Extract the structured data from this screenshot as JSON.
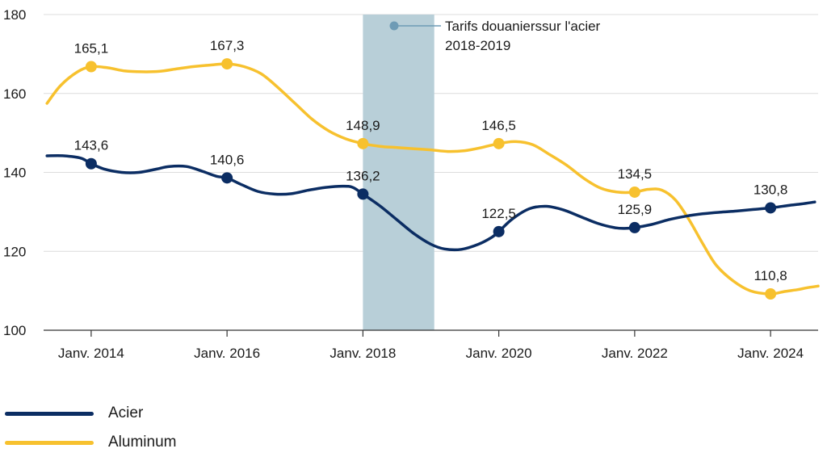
{
  "chart_data": {
    "type": "line",
    "ylim": [
      100,
      180
    ],
    "yticks": [
      100,
      120,
      140,
      160,
      180
    ],
    "xlim": [
      2013.3,
      2024.7
    ],
    "xticks": [
      {
        "x": 2014,
        "label": "Janv. 2014"
      },
      {
        "x": 2016,
        "label": "Janv. 2016"
      },
      {
        "x": 2018,
        "label": "Janv. 2018"
      },
      {
        "x": 2020,
        "label": "Janv. 2020"
      },
      {
        "x": 2022,
        "label": "Janv. 2022"
      },
      {
        "x": 2024,
        "label": "Janv. 2024"
      }
    ],
    "shaded_region": {
      "x_start": 2018.0,
      "x_end": 2019.05,
      "color": "#b8cfd8"
    },
    "annotation": {
      "line1": "Tarifs douanierssur l'acier",
      "line2": "2018-2019"
    },
    "legend_position": "bottom-left",
    "series": [
      {
        "name": "Acier",
        "color": "#0b2d63",
        "points": [
          [
            2013.35,
            144.2
          ],
          [
            2013.6,
            144.2
          ],
          [
            2013.85,
            143.6
          ],
          [
            2014.0,
            142.2
          ],
          [
            2014.2,
            140.8
          ],
          [
            2014.45,
            140.0
          ],
          [
            2014.7,
            140.0
          ],
          [
            2014.95,
            140.8
          ],
          [
            2015.15,
            141.5
          ],
          [
            2015.4,
            141.5
          ],
          [
            2015.65,
            140.2
          ],
          [
            2015.85,
            139.0
          ],
          [
            2016.0,
            138.6
          ],
          [
            2016.2,
            137.0
          ],
          [
            2016.45,
            135.2
          ],
          [
            2016.7,
            134.5
          ],
          [
            2016.95,
            134.6
          ],
          [
            2017.2,
            135.5
          ],
          [
            2017.45,
            136.2
          ],
          [
            2017.7,
            136.5
          ],
          [
            2017.85,
            136.2
          ],
          [
            2018.0,
            134.5
          ],
          [
            2018.25,
            131.5
          ],
          [
            2018.5,
            128.0
          ],
          [
            2018.75,
            124.5
          ],
          [
            2019.0,
            121.8
          ],
          [
            2019.2,
            120.6
          ],
          [
            2019.45,
            120.5
          ],
          [
            2019.7,
            121.8
          ],
          [
            2019.9,
            123.6
          ],
          [
            2020.0,
            125.0
          ],
          [
            2020.2,
            128.2
          ],
          [
            2020.45,
            130.8
          ],
          [
            2020.7,
            131.4
          ],
          [
            2020.95,
            130.5
          ],
          [
            2021.2,
            128.8
          ],
          [
            2021.45,
            127.1
          ],
          [
            2021.7,
            126.0
          ],
          [
            2021.85,
            125.8
          ],
          [
            2022.0,
            126.0
          ],
          [
            2022.25,
            126.8
          ],
          [
            2022.5,
            128.0
          ],
          [
            2022.75,
            128.9
          ],
          [
            2023.0,
            129.5
          ],
          [
            2023.25,
            129.9
          ],
          [
            2023.5,
            130.2
          ],
          [
            2023.75,
            130.6
          ],
          [
            2024.0,
            131.0
          ],
          [
            2024.25,
            131.6
          ],
          [
            2024.45,
            132.0
          ],
          [
            2024.65,
            132.5
          ]
        ]
      },
      {
        "name": "Aluminum",
        "color": "#f7c12e",
        "points": [
          [
            2013.35,
            157.5
          ],
          [
            2013.55,
            162.0
          ],
          [
            2013.8,
            165.5
          ],
          [
            2014.0,
            166.8
          ],
          [
            2014.25,
            166.5
          ],
          [
            2014.5,
            165.7
          ],
          [
            2014.75,
            165.5
          ],
          [
            2015.0,
            165.6
          ],
          [
            2015.25,
            166.2
          ],
          [
            2015.5,
            166.8
          ],
          [
            2015.75,
            167.2
          ],
          [
            2016.0,
            167.5
          ],
          [
            2016.25,
            166.8
          ],
          [
            2016.5,
            165.0
          ],
          [
            2016.75,
            161.5
          ],
          [
            2017.0,
            157.5
          ],
          [
            2017.25,
            153.5
          ],
          [
            2017.5,
            150.5
          ],
          [
            2017.75,
            148.5
          ],
          [
            2018.0,
            147.3
          ],
          [
            2018.25,
            146.6
          ],
          [
            2018.5,
            146.3
          ],
          [
            2018.75,
            146.0
          ],
          [
            2019.0,
            145.7
          ],
          [
            2019.25,
            145.3
          ],
          [
            2019.5,
            145.5
          ],
          [
            2019.75,
            146.3
          ],
          [
            2020.0,
            147.3
          ],
          [
            2020.25,
            147.8
          ],
          [
            2020.5,
            147.0
          ],
          [
            2020.75,
            144.5
          ],
          [
            2021.0,
            141.8
          ],
          [
            2021.25,
            138.5
          ],
          [
            2021.5,
            136.0
          ],
          [
            2021.75,
            135.0
          ],
          [
            2022.0,
            135.0
          ],
          [
            2022.2,
            135.7
          ],
          [
            2022.4,
            135.5
          ],
          [
            2022.6,
            133.0
          ],
          [
            2022.8,
            128.0
          ],
          [
            2023.0,
            122.0
          ],
          [
            2023.2,
            116.5
          ],
          [
            2023.45,
            112.5
          ],
          [
            2023.7,
            110.0
          ],
          [
            2024.0,
            109.2
          ],
          [
            2024.2,
            109.8
          ],
          [
            2024.4,
            110.3
          ],
          [
            2024.55,
            110.8
          ],
          [
            2024.7,
            111.2
          ]
        ]
      }
    ],
    "markers": [
      {
        "series": 0,
        "x": 2014.0,
        "y": 142.2,
        "label": "143,6"
      },
      {
        "series": 0,
        "x": 2016.0,
        "y": 138.6,
        "label": "140,6"
      },
      {
        "series": 0,
        "x": 2018.0,
        "y": 134.5,
        "label": "136,2"
      },
      {
        "series": 0,
        "x": 2020.0,
        "y": 125.0,
        "label": "122,5"
      },
      {
        "series": 0,
        "x": 2022.0,
        "y": 126.0,
        "label": "125,9"
      },
      {
        "series": 0,
        "x": 2024.0,
        "y": 131.0,
        "label": "130,8"
      },
      {
        "series": 1,
        "x": 2014.0,
        "y": 166.8,
        "label": "165,1"
      },
      {
        "series": 1,
        "x": 2016.0,
        "y": 167.5,
        "label": "167,3"
      },
      {
        "series": 1,
        "x": 2018.0,
        "y": 147.3,
        "label": "148,9"
      },
      {
        "series": 1,
        "x": 2020.0,
        "y": 147.3,
        "label": "146,5"
      },
      {
        "series": 1,
        "x": 2022.0,
        "y": 135.0,
        "label": "134,5"
      },
      {
        "series": 1,
        "x": 2024.0,
        "y": 109.2,
        "label": "110,8"
      }
    ]
  }
}
